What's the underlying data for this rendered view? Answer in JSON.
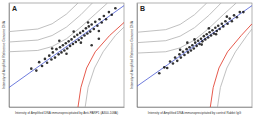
{
  "chart_data": [
    {
      "type": "scatter",
      "title": "A",
      "x_label": "Intensity of Amplified DNA immunoprecipitated by Anti-PARP1 (A300-108A)",
      "y_label": "Intensity of Amplified Reference Genome DNA",
      "xlim": [
        0,
        16
      ],
      "ylim": [
        0,
        16
      ],
      "tick_labels": false,
      "series": [
        {
          "type": "scatter",
          "color": "#000000",
          "marker": "circle",
          "x": [
            3.1,
            3.8,
            4.2,
            4.6,
            5.0,
            5.3,
            5.6,
            5.9,
            6.1,
            6.4,
            6.6,
            6.9,
            7.1,
            7.3,
            7.5,
            7.7,
            7.9,
            8.1,
            8.3,
            8.5,
            8.7,
            8.9,
            9.1,
            9.3,
            9.5,
            9.7,
            9.9,
            10.1,
            10.3,
            10.5,
            10.7,
            10.9,
            11.1,
            11.3,
            11.5,
            11.8,
            12.0,
            12.3,
            12.6,
            12.9,
            13.2,
            13.5,
            13.9,
            14.3,
            14.8,
            7.0,
            8.0,
            9.0,
            10.0,
            11.0,
            6.0,
            12.5,
            11.5,
            12.5
          ],
          "values": [
            5.9,
            5.6,
            6.9,
            6.3,
            7.4,
            6.8,
            7.9,
            7.3,
            8.4,
            7.6,
            8.9,
            8.1,
            9.2,
            8.4,
            9.5,
            8.7,
            9.8,
            9.0,
            10.1,
            9.4,
            10.4,
            9.7,
            10.8,
            10.0,
            11.1,
            10.3,
            11.4,
            10.6,
            11.7,
            11.0,
            12.1,
            11.3,
            12.4,
            11.6,
            12.7,
            12.0,
            13.1,
            12.5,
            13.5,
            13.0,
            14.0,
            13.5,
            14.6,
            14.2,
            15.2,
            10.2,
            8.2,
            11.6,
            9.9,
            13.0,
            9.0,
            11.7,
            9.5,
            10.5
          ]
        },
        {
          "type": "line",
          "color": "#4a5bd4",
          "x": [
            0,
            16
          ],
          "values": [
            3,
            15.6
          ]
        },
        {
          "type": "line",
          "color": "#e03020",
          "x": [
            9.6,
            10.0,
            10.8,
            12.0,
            14.0,
            16.0
          ],
          "values": [
            0,
            3,
            6,
            8.5,
            11,
            13
          ]
        },
        {
          "type": "line",
          "color": "#b0b0b0",
          "x": [
            10.6,
            11.0,
            11.9,
            13.1,
            14.8,
            16.0
          ],
          "values": [
            0,
            3,
            6,
            8.5,
            11,
            12.3
          ]
        },
        {
          "type": "line",
          "color": "#b0b0b0",
          "x": [
            0,
            4,
            6,
            8,
            10,
            12,
            13.7
          ],
          "values": [
            8.5,
            8.7,
            9.3,
            10.5,
            12.3,
            14.3,
            16
          ]
        },
        {
          "type": "line",
          "color": "#b0b0b0",
          "x": [
            0,
            4,
            6,
            8,
            10,
            11.6
          ],
          "values": [
            10.0,
            10.3,
            11.0,
            12.3,
            14.2,
            16
          ]
        },
        {
          "type": "line",
          "color": "#b0b0b0",
          "x": [
            0,
            4,
            6,
            8,
            9.6
          ],
          "values": [
            11.6,
            12.0,
            12.8,
            14.3,
            16
          ]
        }
      ]
    },
    {
      "type": "scatter",
      "title": "B",
      "x_label": "Intensity of Amplified DNA immunoprecipitated by control Rabbit IgG",
      "y_label": "Intensity of Amplified Reference Genome DNA",
      "xlim": [
        0,
        16
      ],
      "ylim": [
        0,
        16
      ],
      "tick_labels": false,
      "series": [
        {
          "type": "scatter",
          "color": "#000000",
          "marker": "circle",
          "x": [
            3.1,
            3.8,
            4.2,
            4.6,
            5.0,
            5.3,
            5.6,
            5.9,
            6.1,
            6.4,
            6.6,
            6.9,
            7.1,
            7.3,
            7.5,
            7.7,
            7.9,
            8.1,
            8.3,
            8.5,
            8.7,
            8.9,
            9.1,
            9.3,
            9.5,
            9.7,
            9.9,
            10.1,
            10.3,
            10.5,
            10.7,
            10.9,
            11.1,
            11.3,
            11.5,
            11.8,
            12.0,
            12.3,
            12.6,
            12.9,
            13.2,
            13.5,
            13.9,
            14.3,
            14.8,
            7.0,
            8.0,
            9.0,
            10.0,
            11.0,
            6.0,
            12.5
          ],
          "values": [
            5.2,
            6.1,
            6.0,
            7.0,
            6.7,
            7.6,
            7.1,
            8.1,
            7.6,
            8.5,
            8.0,
            8.9,
            8.4,
            9.2,
            8.7,
            9.5,
            9.0,
            9.9,
            9.4,
            10.2,
            9.7,
            10.5,
            10.1,
            10.9,
            10.4,
            11.2,
            10.7,
            11.5,
            11.0,
            11.8,
            11.3,
            12.2,
            11.7,
            12.5,
            12.0,
            12.8,
            12.4,
            13.2,
            12.8,
            13.6,
            13.2,
            14.1,
            13.8,
            14.6,
            14.6,
            9.9,
            10.4,
            9.6,
            12.1,
            11.2,
            8.8,
            13.9
          ]
        },
        {
          "type": "line",
          "color": "#4a5bd4",
          "x": [
            0,
            16
          ],
          "values": [
            3.2,
            15.6
          ]
        },
        {
          "type": "line",
          "color": "#e03020",
          "x": [
            10.2,
            10.6,
            11.4,
            12.6,
            14.5,
            16.0
          ],
          "values": [
            0,
            3,
            6,
            8.5,
            11,
            12.8
          ]
        },
        {
          "type": "line",
          "color": "#b0b0b0",
          "x": [
            11.2,
            11.6,
            12.5,
            13.7,
            15.3,
            16.0
          ],
          "values": [
            0,
            3,
            6,
            8.5,
            11,
            12.0
          ]
        },
        {
          "type": "line",
          "color": "#b0b0b0",
          "x": [
            0,
            4,
            6,
            8,
            10,
            12,
            13.8
          ],
          "values": [
            8.3,
            8.5,
            9.1,
            10.3,
            12.1,
            14.2,
            16
          ]
        },
        {
          "type": "line",
          "color": "#b0b0b0",
          "x": [
            0,
            4,
            6,
            8,
            10,
            11.7
          ],
          "values": [
            9.9,
            10.2,
            10.9,
            12.2,
            14.1,
            16
          ]
        },
        {
          "type": "line",
          "color": "#b0b0b0",
          "x": [
            0,
            4,
            6,
            8,
            9.7
          ],
          "values": [
            11.5,
            11.9,
            12.7,
            14.2,
            16
          ]
        }
      ]
    }
  ]
}
